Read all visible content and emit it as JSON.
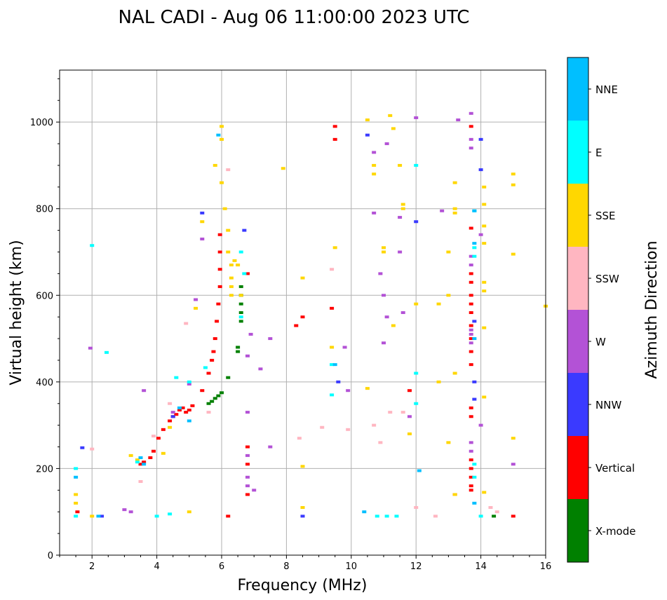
{
  "chart_data": {
    "type": "scatter",
    "title": "NAL CADI - Aug 06 11:00:00 2023 UTC",
    "xlabel": "Frequency (MHz)",
    "ylabel": "Virtual height (km)",
    "xlim": [
      1,
      16
    ],
    "ylim": [
      0,
      1120
    ],
    "xticks": [
      2,
      4,
      6,
      8,
      10,
      12,
      14,
      16
    ],
    "yticks": [
      0,
      200,
      400,
      600,
      800,
      1000
    ],
    "grid": true,
    "colorbar": {
      "label": "Azimuth Direction",
      "categories": [
        "X-mode",
        "Vertical",
        "NNW",
        "W",
        "SSW",
        "SSE",
        "E",
        "NNE"
      ],
      "colors": [
        "#008000",
        "#ff0000",
        "#3a3aff",
        "#b352d6",
        "#ffb6c1",
        "#ffd700",
        "#00ffff",
        "#00bfff"
      ]
    },
    "series": [
      {
        "name": "X-mode",
        "points": [
          [
            5.6,
            350
          ],
          [
            5.7,
            355
          ],
          [
            5.8,
            362
          ],
          [
            5.9,
            368
          ],
          [
            6.0,
            375
          ],
          [
            6.2,
            410
          ],
          [
            6.5,
            470
          ],
          [
            6.5,
            480
          ],
          [
            6.6,
            540
          ],
          [
            6.6,
            560
          ],
          [
            6.6,
            580
          ],
          [
            6.6,
            600
          ],
          [
            6.6,
            620
          ],
          [
            14.4,
            90
          ]
        ]
      },
      {
        "name": "Vertical",
        "points": [
          [
            1.55,
            100
          ],
          [
            3.5,
            210
          ],
          [
            3.6,
            215
          ],
          [
            3.8,
            225
          ],
          [
            3.9,
            240
          ],
          [
            4.05,
            270
          ],
          [
            4.2,
            290
          ],
          [
            4.4,
            310
          ],
          [
            4.5,
            320
          ],
          [
            4.6,
            325
          ],
          [
            4.7,
            335
          ],
          [
            4.8,
            340
          ],
          [
            4.9,
            330
          ],
          [
            5.0,
            335
          ],
          [
            5.1,
            345
          ],
          [
            5.4,
            380
          ],
          [
            5.6,
            420
          ],
          [
            5.7,
            450
          ],
          [
            5.75,
            470
          ],
          [
            5.8,
            500
          ],
          [
            5.85,
            540
          ],
          [
            5.9,
            580
          ],
          [
            5.95,
            620
          ],
          [
            5.95,
            660
          ],
          [
            5.95,
            700
          ],
          [
            5.95,
            740
          ],
          [
            6.2,
            90
          ],
          [
            6.8,
            140
          ],
          [
            6.8,
            210
          ],
          [
            6.8,
            250
          ],
          [
            6.8,
            650
          ],
          [
            8.3,
            530
          ],
          [
            8.5,
            550
          ],
          [
            9.5,
            990
          ],
          [
            9.5,
            960
          ],
          [
            9.4,
            570
          ],
          [
            11.8,
            380
          ],
          [
            13.2,
            140
          ],
          [
            13.7,
            650
          ],
          [
            13.7,
            630
          ],
          [
            13.7,
            600
          ],
          [
            13.7,
            580
          ],
          [
            13.7,
            560
          ],
          [
            13.7,
            530
          ],
          [
            13.7,
            500
          ],
          [
            13.7,
            470
          ],
          [
            13.7,
            440
          ],
          [
            13.7,
            340
          ],
          [
            13.7,
            320
          ],
          [
            13.7,
            220
          ],
          [
            13.7,
            200
          ],
          [
            13.7,
            180
          ],
          [
            13.7,
            160
          ],
          [
            13.7,
            150
          ],
          [
            13.7,
            755
          ],
          [
            13.7,
            990
          ],
          [
            15.0,
            90
          ]
        ]
      },
      {
        "name": "NNW",
        "points": [
          [
            1.7,
            248
          ],
          [
            2.3,
            90
          ],
          [
            4.5,
            320
          ],
          [
            5.4,
            790
          ],
          [
            6.7,
            750
          ],
          [
            9.6,
            400
          ],
          [
            10.5,
            970
          ],
          [
            12.0,
            770
          ],
          [
            13.8,
            540
          ],
          [
            13.8,
            400
          ],
          [
            13.8,
            360
          ],
          [
            14.0,
            960
          ],
          [
            14.0,
            890
          ],
          [
            8.5,
            90
          ]
        ]
      },
      {
        "name": "W",
        "points": [
          [
            1.95,
            478
          ],
          [
            3.0,
            105
          ],
          [
            3.2,
            100
          ],
          [
            3.6,
            380
          ],
          [
            4.5,
            330
          ],
          [
            5.0,
            395
          ],
          [
            5.2,
            590
          ],
          [
            5.4,
            730
          ],
          [
            6.8,
            160
          ],
          [
            6.9,
            510
          ],
          [
            6.8,
            460
          ],
          [
            6.8,
            330
          ],
          [
            6.8,
            230
          ],
          [
            6.8,
            180
          ],
          [
            7.0,
            150
          ],
          [
            7.2,
            430
          ],
          [
            7.5,
            500
          ],
          [
            7.5,
            250
          ],
          [
            9.9,
            380
          ],
          [
            9.8,
            480
          ],
          [
            10.7,
            790
          ],
          [
            10.7,
            930
          ],
          [
            10.9,
            650
          ],
          [
            11.0,
            600
          ],
          [
            11.0,
            490
          ],
          [
            11.1,
            950
          ],
          [
            11.1,
            550
          ],
          [
            11.5,
            780
          ],
          [
            11.5,
            700
          ],
          [
            11.6,
            560
          ],
          [
            11.8,
            320
          ],
          [
            12.0,
            1010
          ],
          [
            12.8,
            795
          ],
          [
            13.3,
            1005
          ],
          [
            13.7,
            1020
          ],
          [
            13.7,
            960
          ],
          [
            13.7,
            940
          ],
          [
            13.7,
            690
          ],
          [
            13.7,
            670
          ],
          [
            13.7,
            520
          ],
          [
            13.7,
            510
          ],
          [
            13.7,
            490
          ],
          [
            13.7,
            260
          ],
          [
            13.7,
            240
          ],
          [
            14.0,
            740
          ],
          [
            14.0,
            300
          ],
          [
            15.0,
            210
          ]
        ]
      },
      {
        "name": "SSW",
        "points": [
          [
            2.0,
            245
          ],
          [
            3.5,
            170
          ],
          [
            3.9,
            275
          ],
          [
            4.4,
            350
          ],
          [
            4.9,
            535
          ],
          [
            5.6,
            330
          ],
          [
            6.2,
            890
          ],
          [
            8.4,
            270
          ],
          [
            9.1,
            295
          ],
          [
            9.4,
            660
          ],
          [
            9.9,
            290
          ],
          [
            10.7,
            300
          ],
          [
            10.9,
            260
          ],
          [
            11.2,
            330
          ],
          [
            11.6,
            330
          ],
          [
            12.0,
            110
          ],
          [
            12.6,
            90
          ],
          [
            14.3,
            110
          ],
          [
            14.5,
            100
          ]
        ]
      },
      {
        "name": "SSE",
        "points": [
          [
            1.5,
            140
          ],
          [
            1.5,
            120
          ],
          [
            2.0,
            90
          ],
          [
            3.2,
            230
          ],
          [
            3.4,
            220
          ],
          [
            4.2,
            235
          ],
          [
            4.4,
            295
          ],
          [
            5.0,
            100
          ],
          [
            5.2,
            570
          ],
          [
            5.4,
            770
          ],
          [
            5.8,
            900
          ],
          [
            6.0,
            990
          ],
          [
            6.0,
            960
          ],
          [
            6.0,
            860
          ],
          [
            6.1,
            800
          ],
          [
            6.2,
            750
          ],
          [
            6.2,
            700
          ],
          [
            6.3,
            670
          ],
          [
            6.3,
            640
          ],
          [
            6.3,
            620
          ],
          [
            6.3,
            600
          ],
          [
            6.4,
            680
          ],
          [
            6.5,
            670
          ],
          [
            6.6,
            600
          ],
          [
            7.9,
            893
          ],
          [
            8.5,
            640
          ],
          [
            8.5,
            205
          ],
          [
            8.5,
            110
          ],
          [
            9.5,
            710
          ],
          [
            9.4,
            480
          ],
          [
            10.5,
            1005
          ],
          [
            10.5,
            385
          ],
          [
            10.7,
            880
          ],
          [
            10.7,
            900
          ],
          [
            11.0,
            710
          ],
          [
            11.0,
            700
          ],
          [
            11.2,
            1015
          ],
          [
            11.3,
            985
          ],
          [
            11.3,
            530
          ],
          [
            11.5,
            900
          ],
          [
            11.6,
            810
          ],
          [
            11.6,
            800
          ],
          [
            11.8,
            280
          ],
          [
            12.0,
            580
          ],
          [
            12.7,
            400
          ],
          [
            12.7,
            580
          ],
          [
            13.0,
            600
          ],
          [
            13.0,
            700
          ],
          [
            13.0,
            260
          ],
          [
            13.2,
            860
          ],
          [
            13.2,
            800
          ],
          [
            13.2,
            790
          ],
          [
            13.2,
            420
          ],
          [
            13.2,
            140
          ],
          [
            14.1,
            850
          ],
          [
            14.1,
            810
          ],
          [
            14.1,
            760
          ],
          [
            14.1,
            720
          ],
          [
            14.1,
            630
          ],
          [
            14.1,
            610
          ],
          [
            14.1,
            525
          ],
          [
            14.1,
            365
          ],
          [
            14.1,
            145
          ],
          [
            15.0,
            880
          ],
          [
            15.0,
            855
          ],
          [
            15.0,
            695
          ],
          [
            15.0,
            270
          ],
          [
            16.0,
            575
          ]
        ]
      },
      {
        "name": "E",
        "points": [
          [
            1.5,
            200
          ],
          [
            1.5,
            90
          ],
          [
            2.0,
            715
          ],
          [
            2.45,
            468
          ],
          [
            3.4,
            215
          ],
          [
            4.0,
            90
          ],
          [
            4.4,
            95
          ],
          [
            4.6,
            410
          ],
          [
            5.0,
            400
          ],
          [
            5.5,
            433
          ],
          [
            6.6,
            700
          ],
          [
            6.7,
            650
          ],
          [
            6.6,
            550
          ],
          [
            9.4,
            440
          ],
          [
            9.4,
            370
          ],
          [
            10.8,
            90
          ],
          [
            11.1,
            90
          ],
          [
            11.4,
            90
          ],
          [
            12.0,
            900
          ],
          [
            12.0,
            420
          ],
          [
            12.0,
            350
          ],
          [
            13.8,
            795
          ],
          [
            13.8,
            710
          ],
          [
            13.8,
            690
          ],
          [
            13.8,
            210
          ],
          [
            13.8,
            180
          ],
          [
            14.0,
            90
          ]
        ]
      },
      {
        "name": "NNE",
        "points": [
          [
            1.5,
            180
          ],
          [
            2.2,
            90
          ],
          [
            3.5,
            225
          ],
          [
            3.6,
            210
          ],
          [
            4.7,
            340
          ],
          [
            5.0,
            310
          ],
          [
            5.9,
            970
          ],
          [
            9.5,
            440
          ],
          [
            10.4,
            100
          ],
          [
            12.1,
            195
          ],
          [
            13.8,
            795
          ],
          [
            13.8,
            720
          ],
          [
            13.8,
            500
          ],
          [
            13.8,
            120
          ]
        ]
      }
    ]
  }
}
